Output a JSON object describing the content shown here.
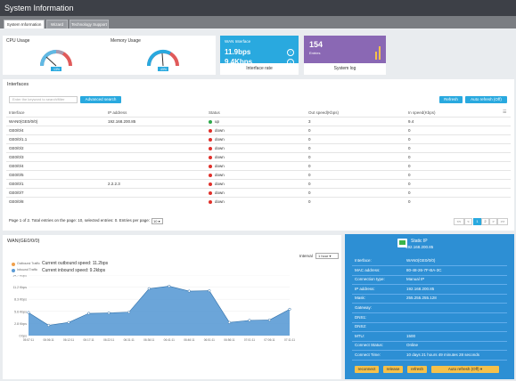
{
  "header": {
    "title": "System Information"
  },
  "tabs": [
    "System Information",
    "Wizard",
    "Technology Support"
  ],
  "gauges": [
    {
      "title": "CPU Usage",
      "percent": 13,
      "label": "13%"
    },
    {
      "title": "Memory Usage",
      "percent": 49,
      "label": "49%"
    }
  ],
  "wan_card": {
    "label": "WAN Interface",
    "outbound": "11.9bps",
    "inbound": "9.4Kbps",
    "caption": "Interface rate"
  },
  "log_card": {
    "count": "154",
    "sub": "Entries",
    "caption": "System log"
  },
  "interfaces": {
    "title": "Interfaces",
    "search_placeholder": "Enter the keyword to search/filter",
    "advanced_search": "Advanced search",
    "refresh": "Refresh",
    "auto_refresh": "Auto refresh (Off)",
    "columns": [
      "Interface",
      "IP address",
      "Status",
      "Out speed(Kbps)",
      "In speed(Kbps)"
    ],
    "rows": [
      {
        "iface": "WAN0(GE0/0/0)",
        "ip": "192.168.200.85",
        "status": "up",
        "out": "3",
        "in": "9.4"
      },
      {
        "iface": "GE0/0/4",
        "ip": "",
        "status": "down",
        "out": "0",
        "in": "0"
      },
      {
        "iface": "GE0/0/1.1",
        "ip": "",
        "status": "down",
        "out": "0",
        "in": "0"
      },
      {
        "iface": "GE0/0/2",
        "ip": "",
        "status": "down",
        "out": "0",
        "in": "0"
      },
      {
        "iface": "GE0/0/3",
        "ip": "",
        "status": "down",
        "out": "0",
        "in": "0"
      },
      {
        "iface": "GE0/0/4",
        "ip": "",
        "status": "down",
        "out": "0",
        "in": "0"
      },
      {
        "iface": "GE0/0/5",
        "ip": "",
        "status": "down",
        "out": "0",
        "in": "0"
      },
      {
        "iface": "GE0/0/1",
        "ip": "2.2.2.3",
        "status": "down",
        "out": "0",
        "in": "0"
      },
      {
        "iface": "GE0/0/7",
        "ip": "",
        "status": "down",
        "out": "0",
        "in": "0"
      },
      {
        "iface": "GE0/0/8",
        "ip": "",
        "status": "down",
        "out": "0",
        "in": "0"
      }
    ],
    "pagination_text": "Page 1 of 2. Total entries on the page: 10, selected entries: 0. Entries per page:",
    "per_page": "10",
    "pager": [
      "<<",
      "<",
      "1",
      "2",
      ">",
      ">>"
    ]
  },
  "traffic": {
    "title": "WAN(GE0/0/0)",
    "interval_label": "Interval",
    "interval_value": "1 hour",
    "legend": [
      {
        "name": "Outbound Traffic",
        "text": "Current outbound speed: 11.2bps"
      },
      {
        "name": "Inbound Traffic",
        "text": "Current inbound speed: 9.2kbps"
      }
    ]
  },
  "chart_data": {
    "type": "area",
    "y_ticks": [
      "14.7 Kbps",
      "11.2 Kbps",
      "8.3 Kbps",
      "5.6 Kbps",
      "2.8 Kbps",
      "0 bps"
    ],
    "x": [
      "05:57:11",
      "06:06:11",
      "06:12:11",
      "06:17:11",
      "06:22:11",
      "06:31:11",
      "06:36:11",
      "06:41:11",
      "06:46:11",
      "06:51:11",
      "06:56:11",
      "07:01:11",
      "07:06:11",
      "07:11:11"
    ],
    "series": [
      {
        "name": "Inbound Traffic",
        "color": "#5b9bd5",
        "values": [
          5.6,
          2.5,
          3.2,
          5.4,
          5.5,
          5.7,
          11.4,
          12.0,
          10.8,
          10.9,
          3.2,
          3.7,
          3.8,
          6.4
        ]
      }
    ],
    "ylim": [
      0,
      14.7
    ]
  },
  "wan_panel": {
    "title": "Static IP",
    "ip": "192.168.200.85",
    "fields": [
      {
        "k": "Interface:",
        "v": "WAN0(GE0/0/0)"
      },
      {
        "k": "MAC address:",
        "v": "80-48-26-7F-BA-3C"
      },
      {
        "k": "Connection type:",
        "v": "Manual IP"
      },
      {
        "k": "IP address:",
        "v": "192.168.200.85"
      },
      {
        "k": "Mask:",
        "v": "255.255.255.128"
      },
      {
        "k": "Gateway:",
        "v": ""
      },
      {
        "k": "DNS1:",
        "v": ""
      },
      {
        "k": "DNS2:",
        "v": ""
      },
      {
        "k": "MTU:",
        "v": "1500"
      },
      {
        "k": "Connect Status:",
        "v": "Online"
      },
      {
        "k": "Connect Time:",
        "v": "10 days 21 hours 49 minutes 28 seconds"
      }
    ],
    "buttons": [
      "reconnect",
      "release",
      "refresh",
      "Auto refresh (Off)"
    ]
  },
  "colors": {
    "accent": "#29a9df",
    "up": "#2ea84b",
    "down": "#e0302a",
    "purple": "#8a68b4",
    "panel": "#2d8fd4"
  }
}
